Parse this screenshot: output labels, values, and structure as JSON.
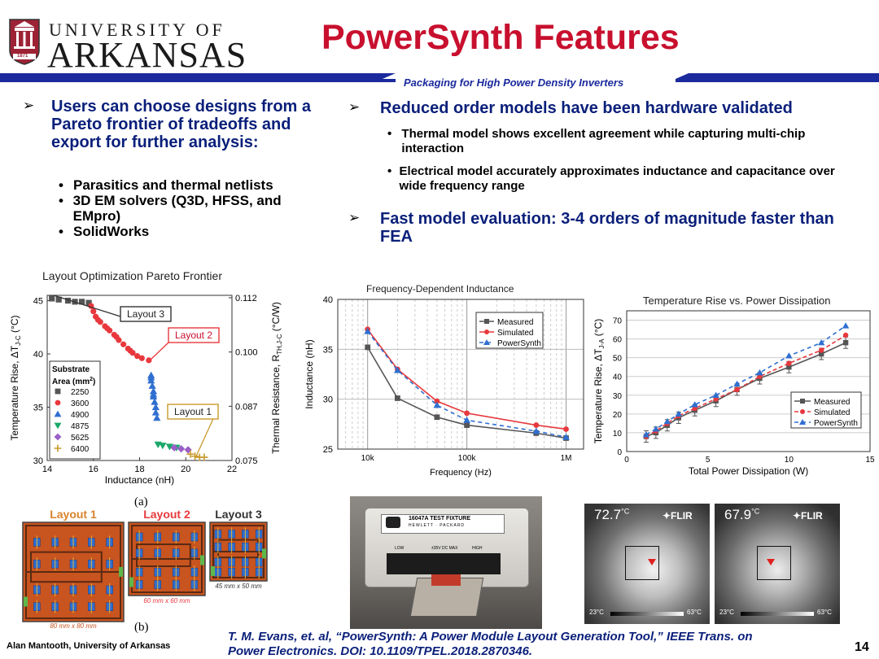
{
  "header": {
    "university_line1": "UNIVERSITY OF",
    "university_line2": "ARKANSAS",
    "seal_year": "1871",
    "title": "PowerSynth Features",
    "subtitle": "Packaging for High Power Density Inverters"
  },
  "left_bullets": {
    "main": "Users can choose designs from a Pareto frontier of tradeoffs and export for further analysis:",
    "subs": [
      "Parasitics and thermal netlists",
      "3D EM solvers (Q3D, HFSS, and EMpro)",
      "SolidWorks"
    ]
  },
  "right_bullets": {
    "main1": "Reduced order models have been hardware validated",
    "subs": [
      "Thermal model shows excellent agreement while capturing multi-chip interaction",
      "Electrical model accurately approximates inductance and capacitance over wide frequency range"
    ],
    "main2": "Fast model evaluation: 3-4 orders of magnitude faster than FEA"
  },
  "chart_data": [
    {
      "type": "scatter",
      "title": "Layout Optimization Pareto Frontier",
      "xlabel": "Inductance (nH)",
      "ylabel": "Temperature Rise, ΔT",
      "ylabel_sub": "J-C",
      "ylabel_unit": " (°C)",
      "y2label": "Thermal Resistance, R",
      "y2label_sub": "TH,J-C",
      "y2label_unit": " (°C/W)",
      "xlim": [
        14,
        22
      ],
      "ylim": [
        30,
        45.5
      ],
      "xticks": [
        "14",
        "16",
        "18",
        "20",
        "22"
      ],
      "yticks": [
        "30",
        "35",
        "40",
        "45"
      ],
      "y2ticks": [
        "0.075",
        "0.087",
        "0.100",
        "0.112"
      ],
      "legend_title": "Substrate",
      "legend_title2": "Area (mm",
      "legend_title2_sup": "2",
      "legend_title2_end": ")",
      "series": [
        {
          "name": "2250",
          "color": "#555555",
          "marker": "square",
          "points": [
            [
              14.2,
              45.2
            ],
            [
              14.5,
              45.1
            ],
            [
              14.9,
              45.0
            ],
            [
              15.2,
              44.9
            ],
            [
              15.5,
              44.9
            ],
            [
              15.8,
              44.8
            ]
          ]
        },
        {
          "name": "3600",
          "color": "#e8383d",
          "marker": "circle",
          "points": [
            [
              15.9,
              44.5
            ],
            [
              16.0,
              44.0
            ],
            [
              16.1,
              43.5
            ],
            [
              16.3,
              43.0
            ],
            [
              16.5,
              42.6
            ],
            [
              16.7,
              42.2
            ],
            [
              16.9,
              41.8
            ],
            [
              17.1,
              41.3
            ],
            [
              17.3,
              40.9
            ],
            [
              17.5,
              40.5
            ],
            [
              17.7,
              40.1
            ],
            [
              17.9,
              39.8
            ],
            [
              18.1,
              39.6
            ],
            [
              18.4,
              39.4
            ],
            [
              16.2,
              43.2
            ],
            [
              16.6,
              42.4
            ],
            [
              17.0,
              41.6
            ],
            [
              17.6,
              40.3
            ]
          ]
        },
        {
          "name": "4900",
          "color": "#2f6fd0",
          "marker": "triangle",
          "points": [
            [
              18.5,
              38.0
            ],
            [
              18.5,
              37.5
            ],
            [
              18.55,
              37.0
            ],
            [
              18.6,
              36.5
            ],
            [
              18.6,
              36.0
            ],
            [
              18.65,
              35.5
            ],
            [
              18.7,
              35.0
            ],
            [
              18.7,
              34.5
            ],
            [
              18.75,
              34.0
            ],
            [
              18.5,
              37.8
            ],
            [
              18.6,
              36.2
            ]
          ]
        },
        {
          "name": "4875",
          "color": "#1aa86a",
          "marker": "tri-down",
          "points": [
            [
              18.8,
              31.5
            ],
            [
              19.0,
              31.4
            ],
            [
              19.3,
              31.3
            ],
            [
              19.6,
              31.2
            ]
          ]
        },
        {
          "name": "5625",
          "color": "#9a5fc7",
          "marker": "diamond",
          "points": [
            [
              19.5,
              31.2
            ],
            [
              19.8,
              31.1
            ],
            [
              20.1,
              31.0
            ]
          ]
        },
        {
          "name": "6400",
          "color": "#c99a2e",
          "marker": "plus",
          "points": [
            [
              20.2,
              30.6
            ],
            [
              20.4,
              30.4
            ],
            [
              20.6,
              30.3
            ],
            [
              20.8,
              30.3
            ]
          ]
        }
      ],
      "annotations": [
        "Layout 3",
        "Layout 2",
        "Layout 1"
      ]
    },
    {
      "type": "line",
      "title": "Frequency-Dependent Inductance",
      "xlabel": "Frequency (Hz)",
      "ylabel": "Inductance (nH)",
      "xscale": "log",
      "xlim": [
        5000,
        1500000
      ],
      "ylim": [
        25,
        40
      ],
      "xticks": [
        "10k",
        "100k",
        "1M"
      ],
      "yticks": [
        "25",
        "30",
        "35",
        "40"
      ],
      "legend": "top-right",
      "x": [
        10000,
        20000,
        50000,
        100000,
        500000,
        1000000
      ],
      "series": [
        {
          "name": "Measured",
          "color": "#555555",
          "marker": "square",
          "dash": "",
          "values": [
            35.2,
            30.1,
            28.2,
            27.4,
            26.6,
            26.1
          ]
        },
        {
          "name": "Simulated",
          "color": "#e8383d",
          "marker": "circle",
          "dash": "",
          "values": [
            37.0,
            33.0,
            29.8,
            28.6,
            27.4,
            27.0
          ]
        },
        {
          "name": "PowerSynth",
          "color": "#2f6fd0",
          "marker": "triangle",
          "dash": "5,4",
          "values": [
            36.8,
            32.9,
            29.4,
            27.9,
            26.8,
            26.2
          ]
        }
      ]
    },
    {
      "type": "line",
      "title": "Temperature Rise vs. Power Dissipation",
      "xlabel": "Total Power Dissipation (W)",
      "ylabel": "Temperature Rise, ΔT",
      "ylabel_sub": "J-A",
      "ylabel_unit": " (°C)",
      "xlim": [
        0,
        15
      ],
      "ylim": [
        0,
        75
      ],
      "xticks": [
        "0",
        "5",
        "10",
        "15"
      ],
      "yticks": [
        "0",
        "10",
        "20",
        "30",
        "40",
        "50",
        "60",
        "70"
      ],
      "legend": "bottom-right",
      "x": [
        1.2,
        1.8,
        2.5,
        3.2,
        4.2,
        5.5,
        6.8,
        8.2,
        10.0,
        12.0,
        13.5
      ],
      "series": [
        {
          "name": "Measured",
          "color": "#555555",
          "marker": "square",
          "dash": "",
          "values": [
            8,
            10,
            14,
            18,
            22,
            27,
            33,
            39,
            45,
            52,
            58
          ]
        },
        {
          "name": "Simulated",
          "color": "#e8383d",
          "marker": "circle",
          "dash": "5,3",
          "values": [
            8,
            11,
            15,
            19,
            23,
            28,
            33,
            40,
            47,
            54,
            62
          ]
        },
        {
          "name": "PowerSynth",
          "color": "#2f6fd0",
          "marker": "triangle",
          "dash": "5,4",
          "values": [
            9,
            12,
            16,
            20,
            25,
            30,
            36,
            42,
            51,
            58,
            67
          ]
        }
      ]
    }
  ],
  "figure_a_label": "(a)",
  "figure_b_label": "(b)",
  "layouts": [
    {
      "name": "Layout 1",
      "size": "80 mm x 80 mm",
      "name_color": "#d9822b"
    },
    {
      "name": "Layout 2",
      "size": "60 mm x 60 mm",
      "name_color": "#e8383d"
    },
    {
      "name": "Layout 3",
      "size": "45 mm x 50 mm",
      "name_color": "#333333"
    }
  ],
  "fixture": {
    "label1": "16047A TEST FIXTURE",
    "label2": "HEWLETT · PACKARD",
    "low": "LOW",
    "mid": "±35V DC MAX",
    "high": "HIGH"
  },
  "thermal": [
    {
      "temp": "72.7",
      "unit": "°C",
      "brand": "✦FLIR",
      "min": "23°C",
      "max": "63°C"
    },
    {
      "temp": "67.9",
      "unit": "°C",
      "brand": "✦FLIR",
      "min": "23°C",
      "max": "63°C"
    }
  ],
  "footer": {
    "author": "Alan Mantooth, University of Arkansas",
    "reference_line1": "T. M. Evans, et. al, “PowerSynth: A Power Module Layout Generation Tool,” IEEE Trans. on",
    "reference_line2": "Power Electronics. DOI: 10.1109/TPEL.2018.2870346.",
    "page_number": "14"
  },
  "colors": {
    "title_red": "#c8102e",
    "bar_navy": "#1b2a9c",
    "text_navy": "#0a1f7a",
    "board_orange": "#c8541f"
  }
}
